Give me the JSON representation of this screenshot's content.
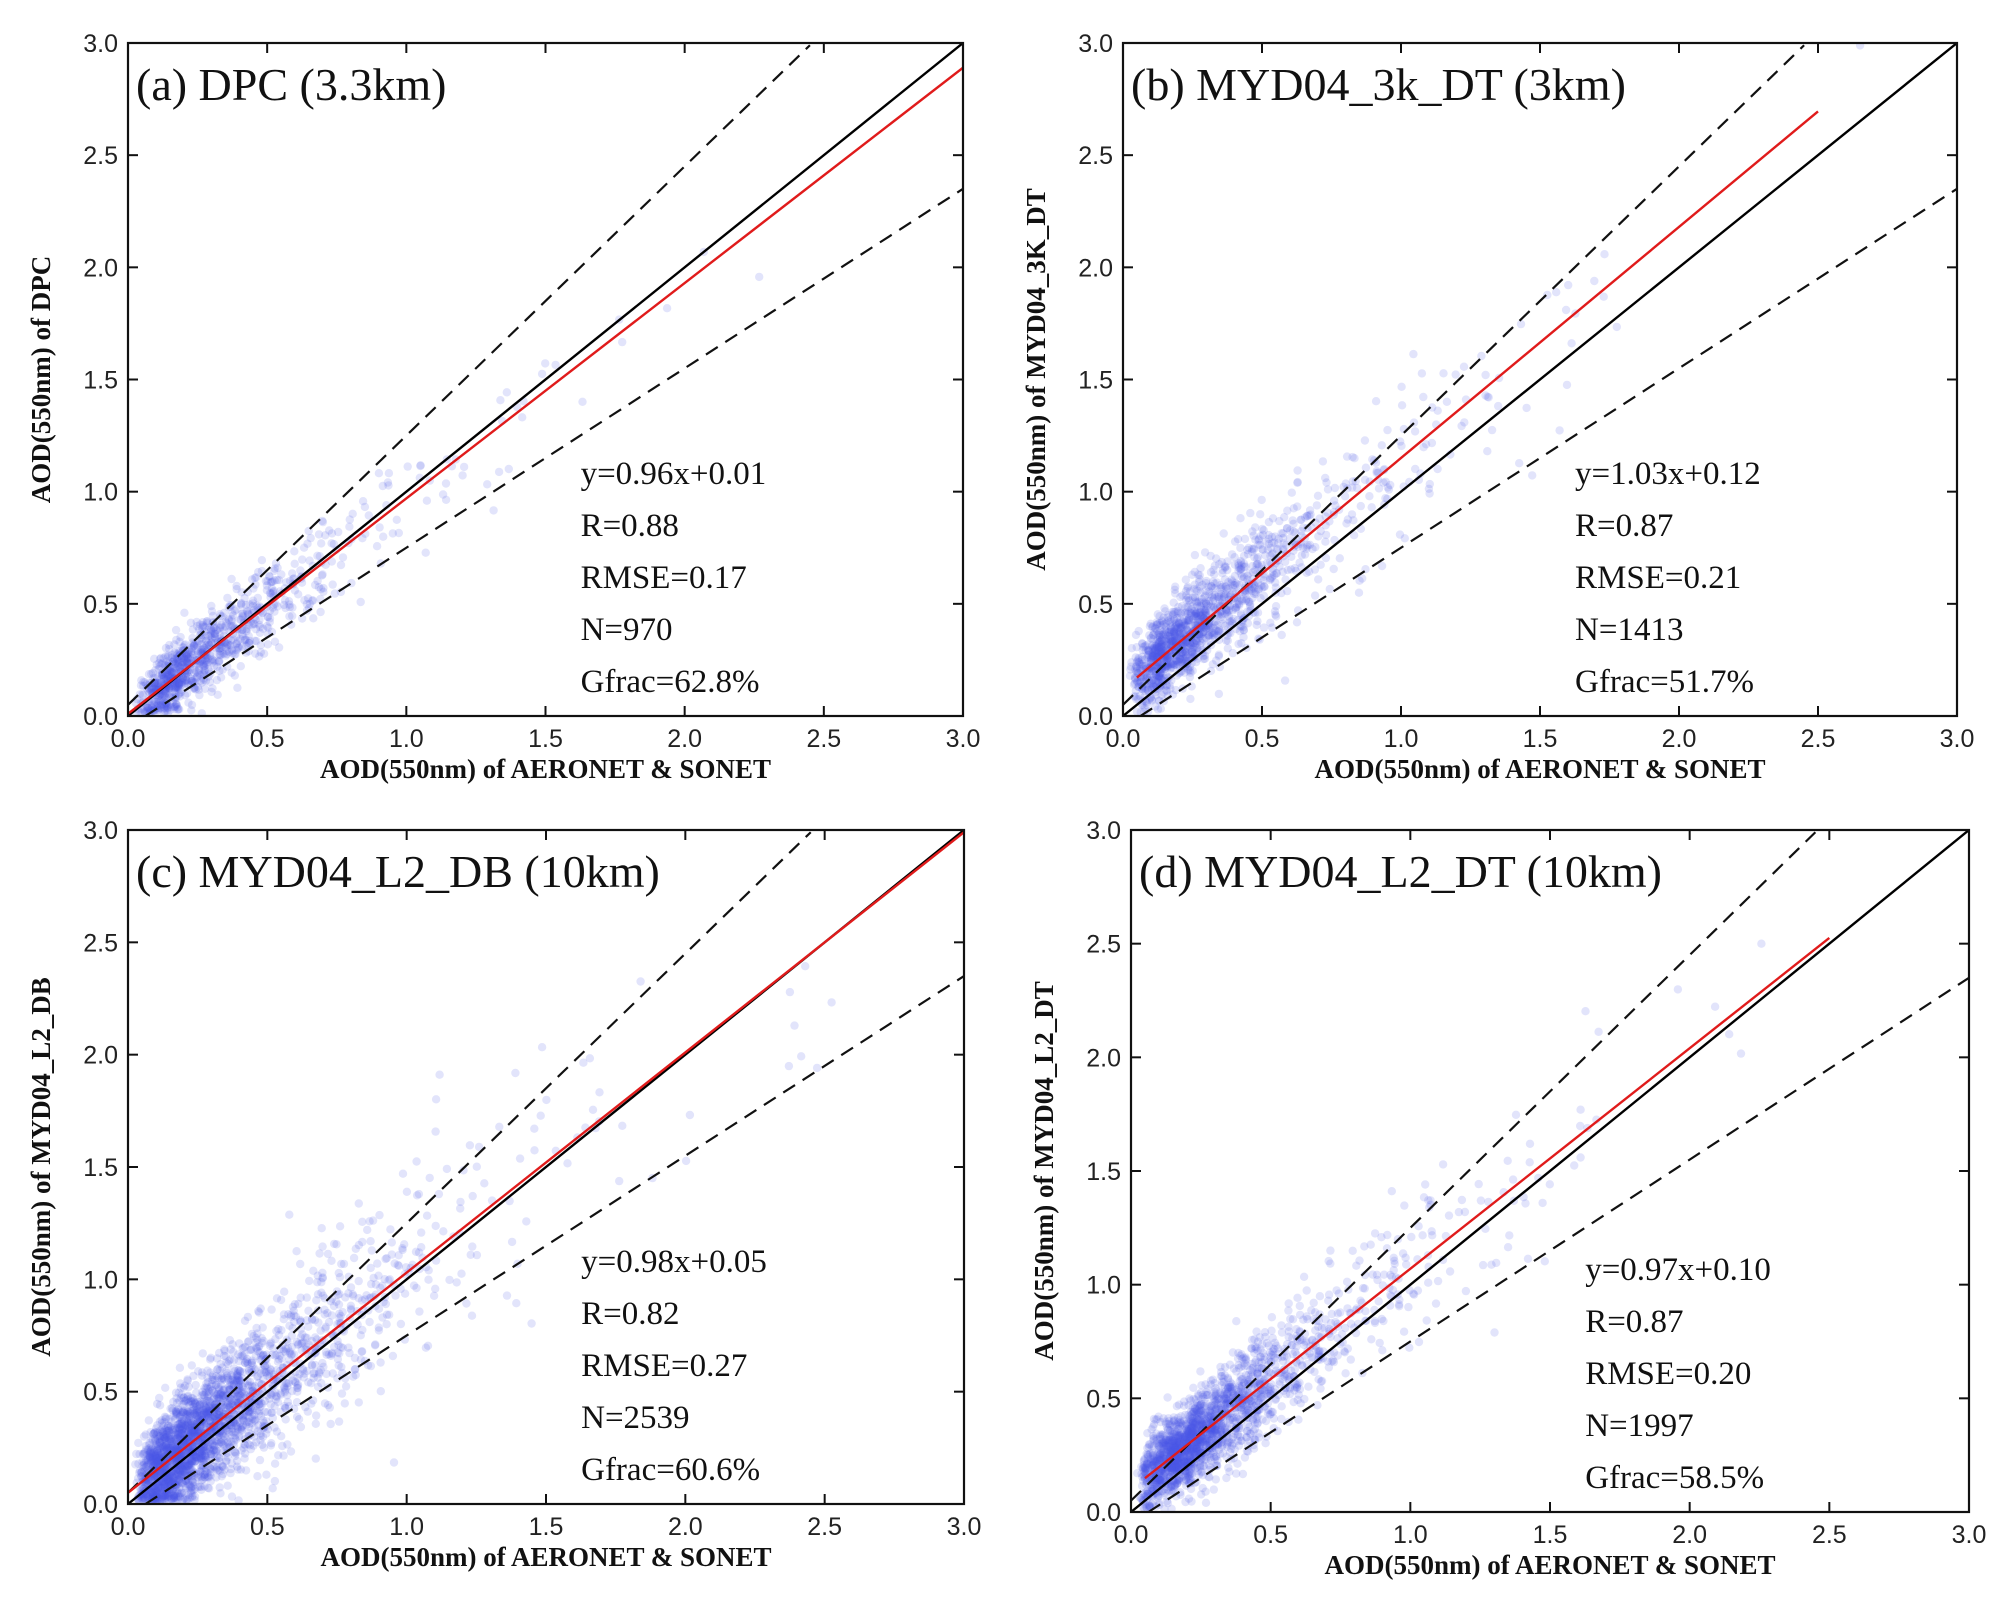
{
  "chart_data": [
    {
      "type": "scatter",
      "title": "(a) DPC (3.3km)",
      "xlabel": "AOD(550nm) of AERONET & SONET",
      "ylabel": "AOD(550nm) of DPC",
      "xlim": [
        0,
        3.0
      ],
      "ylim": [
        0,
        3.0
      ],
      "ticks": [
        "0.0",
        "0.5",
        "1.0",
        "1.5",
        "2.0",
        "2.5",
        "3.0"
      ],
      "fit": {
        "slope": 0.96,
        "intercept": 0.01,
        "x_range": [
          0.0,
          3.0
        ]
      },
      "stats": [
        "y=0.96x+0.01",
        "R=0.88",
        "RMSE=0.17",
        "N=970",
        "Gfrac=62.8%"
      ],
      "n_points": 970,
      "point_color": "#4a5ae6",
      "fit_color": "#e01b1b",
      "one_to_one_color": "#000000",
      "envelope": "±(0.05+0.2×AOD)"
    },
    {
      "type": "scatter",
      "title": "(b) MYD04_3k_DT (3km)",
      "xlabel": "AOD(550nm) of AERONET & SONET",
      "ylabel": "AOD(550nm) of MYD04_3K_DT",
      "xlim": [
        0,
        3.0
      ],
      "ylim": [
        0,
        3.0
      ],
      "ticks": [
        "0.0",
        "0.5",
        "1.0",
        "1.5",
        "2.0",
        "2.5",
        "3.0"
      ],
      "fit": {
        "slope": 1.03,
        "intercept": 0.12,
        "x_range": [
          0.05,
          2.5
        ]
      },
      "stats": [
        "y=1.03x+0.12",
        "R=0.87",
        "RMSE=0.21",
        "N=1413",
        "Gfrac=51.7%"
      ],
      "n_points": 1413,
      "point_color": "#4a5ae6",
      "fit_color": "#e01b1b",
      "one_to_one_color": "#000000",
      "envelope": "±(0.05+0.2×AOD)"
    },
    {
      "type": "scatter",
      "title": "(c) MYD04_L2_DB (10km)",
      "xlabel": "AOD(550nm) of AERONET & SONET",
      "ylabel": "AOD(550nm) of MYD04_L2_DB",
      "xlim": [
        0,
        3.0
      ],
      "ylim": [
        0,
        3.0
      ],
      "ticks": [
        "0.0",
        "0.5",
        "1.0",
        "1.5",
        "2.0",
        "2.5",
        "3.0"
      ],
      "fit": {
        "slope": 0.98,
        "intercept": 0.05,
        "x_range": [
          0.0,
          3.0
        ]
      },
      "stats": [
        "y=0.98x+0.05",
        "R=0.82",
        "RMSE=0.27",
        "N=2539",
        "Gfrac=60.6%"
      ],
      "n_points": 2539,
      "point_color": "#4a5ae6",
      "fit_color": "#e01b1b",
      "one_to_one_color": "#000000",
      "envelope": "±(0.05+0.2×AOD)"
    },
    {
      "type": "scatter",
      "title": "(d) MYD04_L2_DT (10km)",
      "xlabel": "AOD(550nm) of AERONET & SONET",
      "ylabel": "AOD(550nm) of MYD04_L2_DT",
      "xlim": [
        0,
        3.0
      ],
      "ylim": [
        0,
        3.0
      ],
      "ticks": [
        "0.0",
        "0.5",
        "1.0",
        "1.5",
        "2.0",
        "2.5",
        "3.0"
      ],
      "fit": {
        "slope": 0.97,
        "intercept": 0.1,
        "x_range": [
          0.05,
          2.5
        ]
      },
      "stats": [
        "y=0.97x+0.10",
        "R=0.87",
        "RMSE=0.20",
        "N=1997",
        "Gfrac=58.5%"
      ],
      "n_points": 1997,
      "point_color": "#4a5ae6",
      "fit_color": "#e01b1b",
      "one_to_one_color": "#000000",
      "envelope": "±(0.05+0.2×AOD)"
    }
  ]
}
